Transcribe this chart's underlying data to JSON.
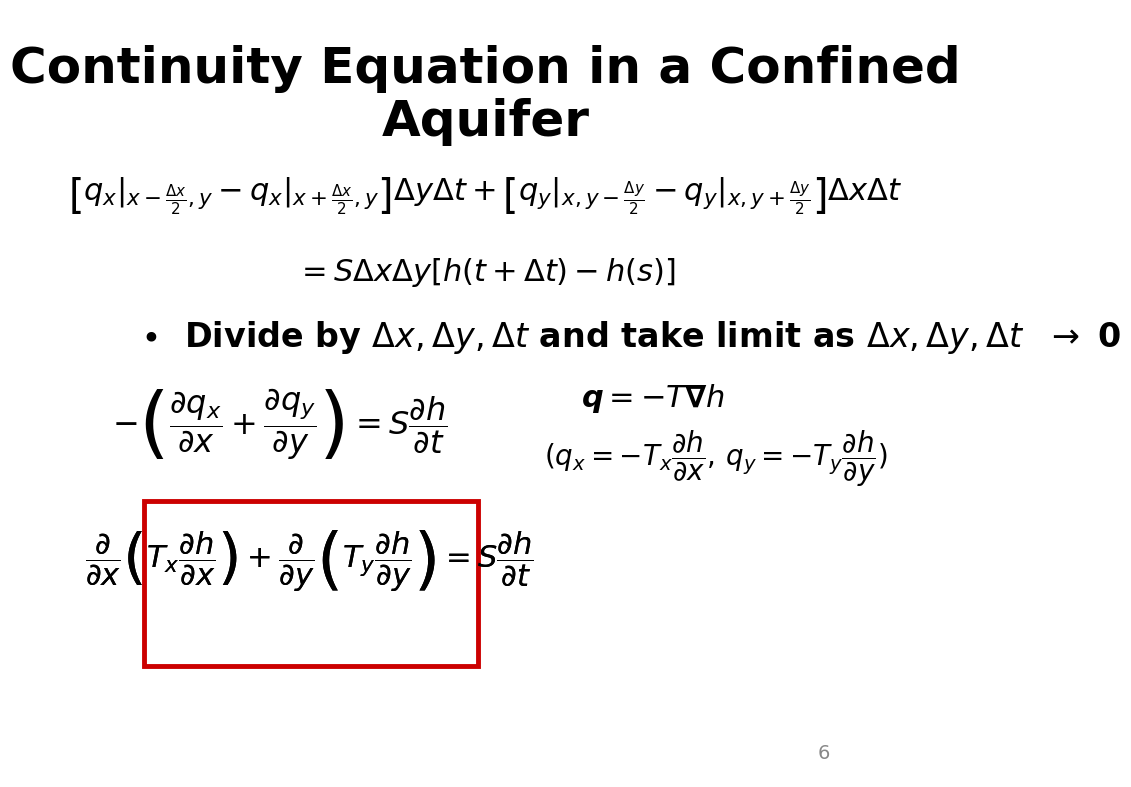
{
  "title_line1": "Continuity Equation in a Confined",
  "title_line2": "Aquifer",
  "title_fontsize": 36,
  "title_fontweight": "bold",
  "bg_color": "#ffffff",
  "text_color": "#000000",
  "eq1": "\\left[q_x\\Big|_{x-\\frac{\\Delta x}{2},y} - q_x\\Big|_{x+\\frac{\\Delta x}{2},y}\\right]\\Delta y\\Delta t + \\left[q_y\\Big|_{x,y-\\frac{\\Delta y}{2}} - q_y\\Big|_{x,y+\\frac{\\Delta y}{2}}\\right]\\Delta x\\Delta t",
  "eq2": "= S\\Delta x\\Delta y[h(t + \\Delta t) - h(s)]",
  "eq3": "\\bullet \\quad \\text{Divide by } \\Delta x, \\Delta y, \\Delta t \\text{ and take limit as } \\Delta x, \\Delta y, \\Delta t \\rightarrow 0",
  "eq4": "-\\left(\\frac{\\partial q_x}{\\partial x} + \\frac{\\partial q_y}{\\partial y}\\right) = S\\frac{\\partial h}{\\partial t}",
  "eq5": "\\boldsymbol{q} = -T\\boldsymbol{\\nabla}h",
  "eq6": "\\left(q_x = -T_x\\frac{\\partial h}{\\partial x}, q_y = -T_y\\frac{\\partial h}{\\partial y}\\right)",
  "eq7": "\\frac{\\partial}{\\partial x}\\left(T_x\\frac{\\partial h}{\\partial x}\\right) + \\frac{\\partial}{\\partial y}\\left(T_y\\frac{\\partial h}{\\partial y}\\right) = S\\frac{\\partial h}{\\partial t}",
  "box_color": "#cc0000",
  "page_number": "6",
  "eq_fontsize": 20,
  "bullet_fontsize": 24
}
